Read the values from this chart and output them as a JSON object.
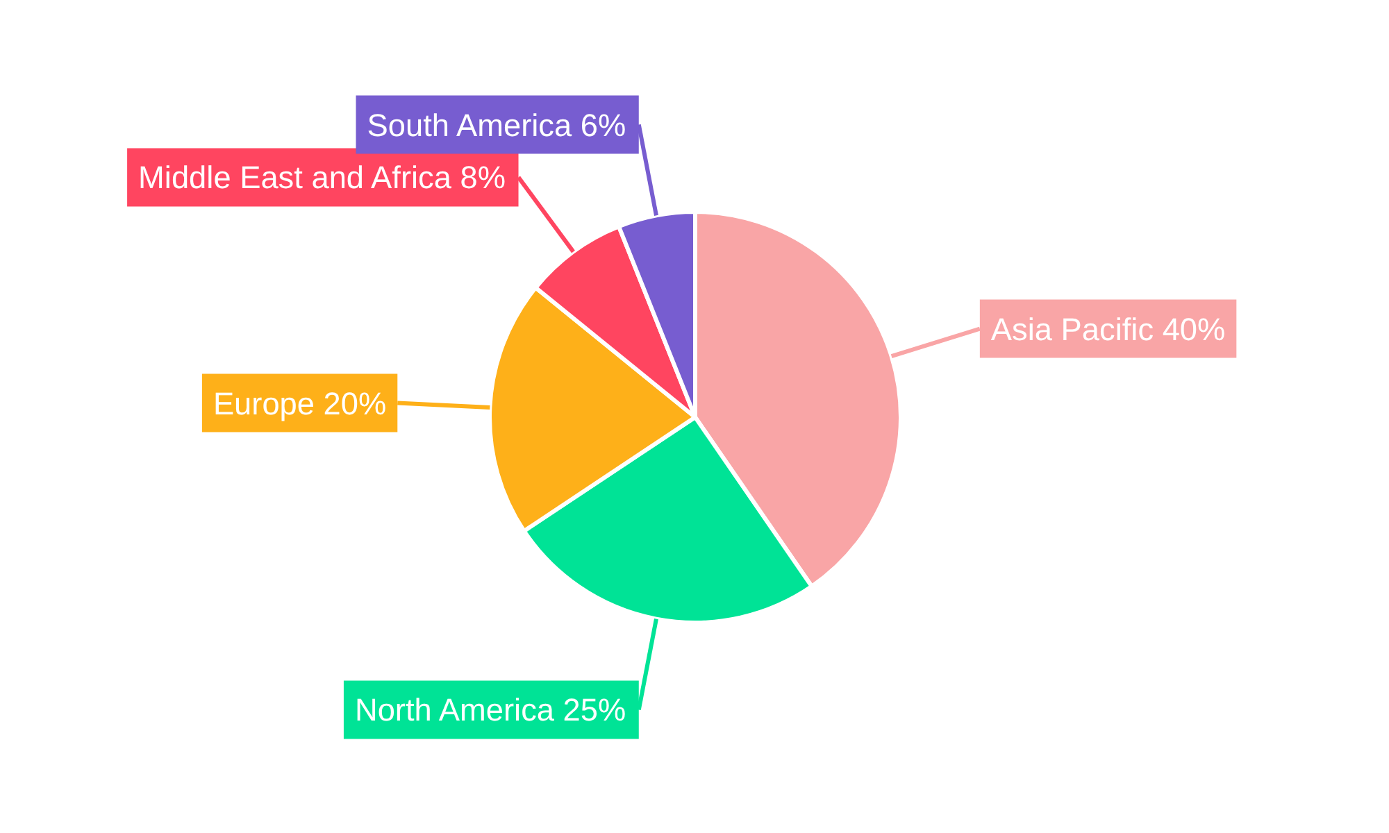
{
  "chart_data": {
    "type": "pie",
    "categories": [
      "Asia Pacific",
      "North America",
      "Europe",
      "Middle East and Africa",
      "South America"
    ],
    "values": [
      40,
      25,
      20,
      8,
      6
    ],
    "value_labels": [
      "40%",
      "25%",
      "20%",
      "8%",
      "6%"
    ],
    "colors": [
      "#f9a5a6",
      "#00e396",
      "#feb019",
      "#ff4560",
      "#775dd0"
    ]
  }
}
